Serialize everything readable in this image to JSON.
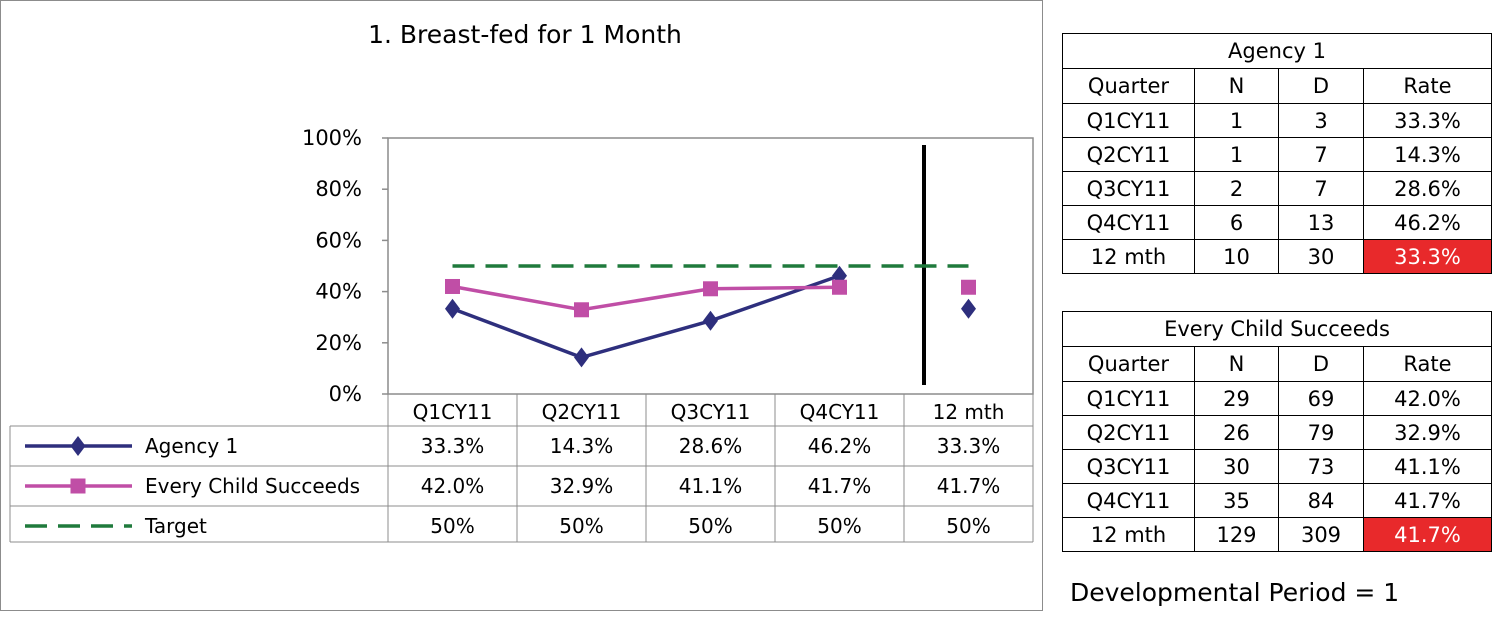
{
  "chart_data": {
    "type": "line",
    "title": "1. Breast-fed for 1 Month",
    "categories": [
      "Q1CY11",
      "Q2CY11",
      "Q3CY11",
      "Q4CY11",
      "12 mth"
    ],
    "ylim": [
      0,
      100
    ],
    "yticks": [
      "0%",
      "20%",
      "40%",
      "60%",
      "80%",
      "100%"
    ],
    "grid": false,
    "legend": "data table below plot",
    "series": [
      {
        "name": "Agency 1",
        "marker": "diamond",
        "color": "#2e2f7d",
        "values": [
          33.3,
          14.3,
          28.6,
          46.2,
          33.3
        ],
        "labels": [
          "33.3%",
          "14.3%",
          "28.6%",
          "46.2%",
          "33.3%"
        ]
      },
      {
        "name": "Every Child Succeeds",
        "marker": "square",
        "color": "#c04ea6",
        "values": [
          42.0,
          32.9,
          41.1,
          41.7,
          41.7
        ],
        "labels": [
          "42.0%",
          "32.9%",
          "41.1%",
          "41.7%",
          "41.7%"
        ]
      },
      {
        "name": "Target",
        "marker": "none",
        "dash": true,
        "color": "#1f7a3c",
        "values": [
          50,
          50,
          50,
          50,
          50
        ],
        "labels": [
          "50%",
          "50%",
          "50%",
          "50%",
          "50%"
        ]
      }
    ]
  },
  "agency_table": {
    "title": "Agency 1",
    "headers": [
      "Quarter",
      "N",
      "D",
      "Rate"
    ],
    "rows": [
      [
        "Q1CY11",
        "1",
        "3",
        "33.3%"
      ],
      [
        "Q2CY11",
        "1",
        "7",
        "14.3%"
      ],
      [
        "Q3CY11",
        "2",
        "7",
        "28.6%"
      ],
      [
        "Q4CY11",
        "6",
        "13",
        "46.2%"
      ],
      [
        "12 mth",
        "10",
        "30",
        "33.3%"
      ]
    ],
    "highlight_color": "#e8292b"
  },
  "ecs_table": {
    "title": "Every Child Succeeds",
    "headers": [
      "Quarter",
      "N",
      "D",
      "Rate"
    ],
    "rows": [
      [
        "Q1CY11",
        "29",
        "69",
        "42.0%"
      ],
      [
        "Q2CY11",
        "26",
        "79",
        "32.9%"
      ],
      [
        "Q3CY11",
        "30",
        "73",
        "41.1%"
      ],
      [
        "Q4CY11",
        "35",
        "84",
        "41.7%"
      ],
      [
        "12 mth",
        "129",
        "309",
        "41.7%"
      ]
    ],
    "highlight_color": "#e8292b"
  },
  "footer": {
    "developmental_period": "Developmental Period = 1"
  }
}
